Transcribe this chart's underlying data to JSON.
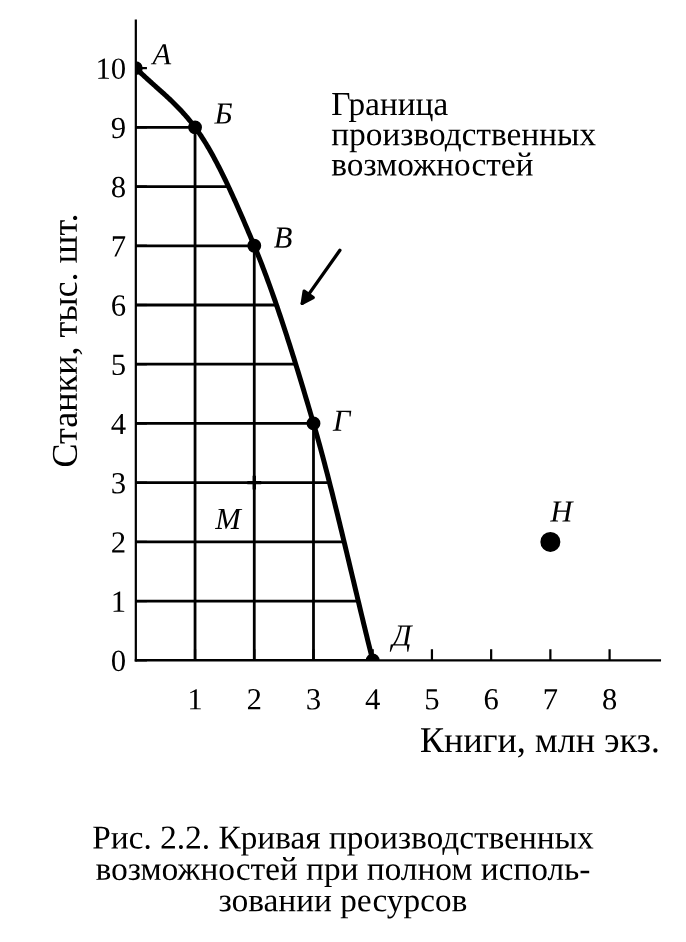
{
  "chart_data": {
    "type": "line",
    "xlabel": "Книги, млн экз.",
    "ylabel": "Станки, тыс. шт.",
    "xlim": [
      0,
      8.85
    ],
    "ylim": [
      0,
      10.8
    ],
    "xticks": [
      1,
      2,
      3,
      4,
      5,
      6,
      7,
      8
    ],
    "yticks": [
      0,
      1,
      2,
      3,
      4,
      5,
      6,
      7,
      8,
      9,
      10
    ],
    "grid": true,
    "series": [
      {
        "color": "#000000",
        "marker": "circle",
        "x": [
          0,
          1,
          2,
          3,
          4
        ],
        "values": [
          10,
          9,
          7,
          4,
          0
        ]
      },
      {
        "type": "scatter",
        "color": "#000000",
        "marker": "cross",
        "x": [
          2
        ],
        "values": [
          3
        ]
      },
      {
        "type": "scatter",
        "color": "#000000",
        "marker": "circle",
        "x": [
          7
        ],
        "values": [
          2
        ]
      }
    ],
    "annotations": [
      {
        "text": "A",
        "x": 0,
        "y": 10
      },
      {
        "text": "Б",
        "x": 1,
        "y": 9
      },
      {
        "text": "В",
        "x": 2,
        "y": 7
      },
      {
        "text": "Г",
        "x": 3,
        "y": 4
      },
      {
        "text": "Д",
        "x": 4,
        "y": 0
      },
      {
        "text": "М",
        "x": 2,
        "y": 3
      },
      {
        "text": "Н",
        "x": 7,
        "y": 2
      },
      "Граница\nпроизводственных\nвозможностей",
      "Рис. 2.2. Кривая производственных\nвозможностей при полном исполь-\nзовании ресурсов"
    ]
  }
}
